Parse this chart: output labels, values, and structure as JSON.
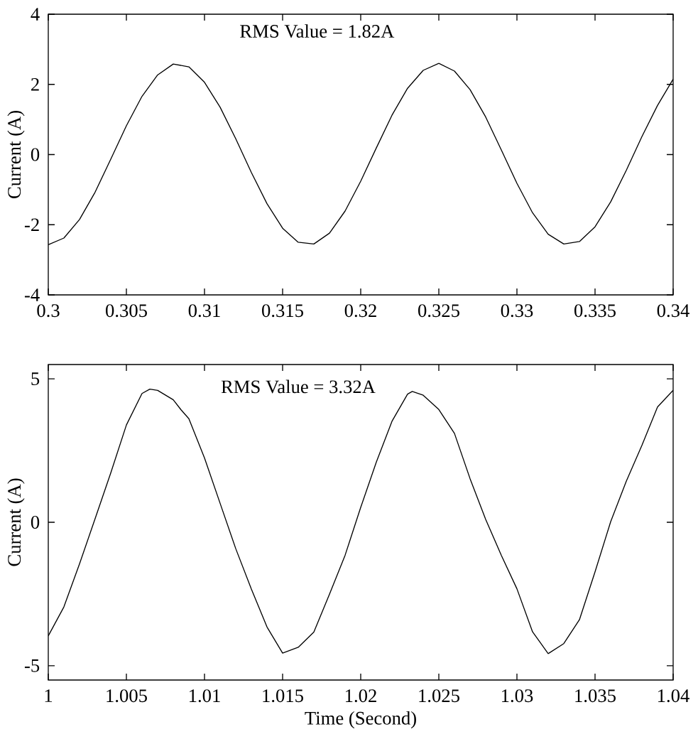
{
  "chart_data": [
    {
      "type": "line",
      "ylabel": "Current (A)",
      "annotations": [
        "RMS Value = 1.82A"
      ],
      "xlim": [
        0.3,
        0.34
      ],
      "ylim": [
        -4,
        4
      ],
      "xticks": [
        0.3,
        0.305,
        0.31,
        0.315,
        0.32,
        0.325,
        0.33,
        0.335,
        0.34
      ],
      "yticks": [
        -4,
        -2,
        0,
        2,
        4
      ],
      "series": [
        {
          "color": "#000000",
          "x": [
            0.3,
            0.301,
            0.302,
            0.303,
            0.304,
            0.305,
            0.306,
            0.307,
            0.308,
            0.309,
            0.31,
            0.311,
            0.312,
            0.313,
            0.314,
            0.315,
            0.316,
            0.317,
            0.318,
            0.319,
            0.32,
            0.321,
            0.322,
            0.323,
            0.324,
            0.325,
            0.326,
            0.327,
            0.328,
            0.329,
            0.33,
            0.331,
            0.332,
            0.333,
            0.334,
            0.335,
            0.336,
            0.337,
            0.338,
            0.339,
            0.34
          ],
          "values": [
            -2.57,
            -2.38,
            -1.85,
            -1.07,
            -0.13,
            0.82,
            1.66,
            2.27,
            2.58,
            2.5,
            2.06,
            1.35,
            0.45,
            -0.51,
            -1.4,
            -2.1,
            -2.5,
            -2.55,
            -2.24,
            -1.61,
            -0.76,
            0.19,
            1.12,
            1.89,
            2.4,
            2.6,
            2.38,
            1.85,
            1.07,
            0.13,
            -0.82,
            -1.66,
            -2.27,
            -2.55,
            -2.48,
            -2.06,
            -1.35,
            -0.45,
            0.51,
            1.4,
            2.15
          ]
        }
      ]
    },
    {
      "type": "line",
      "xlabel": "Time (Second)",
      "ylabel": "Current (A)",
      "annotations": [
        "RMS Value = 3.32A"
      ],
      "xlim": [
        1,
        1.04
      ],
      "ylim": [
        -5.5,
        5.5
      ],
      "xticks": [
        1,
        1.005,
        1.01,
        1.015,
        1.02,
        1.025,
        1.03,
        1.035,
        1.04
      ],
      "yticks": [
        -5,
        0,
        5
      ],
      "series": [
        {
          "color": "#000000",
          "x": [
            1.0,
            1.001,
            1.002,
            1.003,
            1.004,
            1.005,
            1.006,
            1.0065,
            1.007,
            1.008,
            1.0085,
            1.009,
            1.01,
            1.011,
            1.012,
            1.013,
            1.014,
            1.015,
            1.016,
            1.017,
            1.018,
            1.019,
            1.02,
            1.021,
            1.022,
            1.023,
            1.0233,
            1.024,
            1.025,
            1.026,
            1.027,
            1.028,
            1.029,
            1.03,
            1.031,
            1.032,
            1.033,
            1.034,
            1.035,
            1.036,
            1.037,
            1.038,
            1.039,
            1.04
          ],
          "values": [
            -3.96,
            -2.95,
            -1.45,
            0.13,
            1.72,
            3.39,
            4.49,
            4.64,
            4.6,
            4.27,
            3.92,
            3.61,
            2.24,
            0.66,
            -0.92,
            -2.33,
            -3.65,
            -4.56,
            -4.36,
            -3.83,
            -2.51,
            -1.15,
            0.52,
            2.1,
            3.52,
            4.47,
            4.56,
            4.43,
            3.93,
            3.1,
            1.52,
            0.1,
            -1.15,
            -2.32,
            -3.82,
            -4.58,
            -4.23,
            -3.4,
            -1.73,
            0.02,
            1.43,
            2.68,
            4.02,
            4.6
          ]
        }
      ]
    }
  ]
}
